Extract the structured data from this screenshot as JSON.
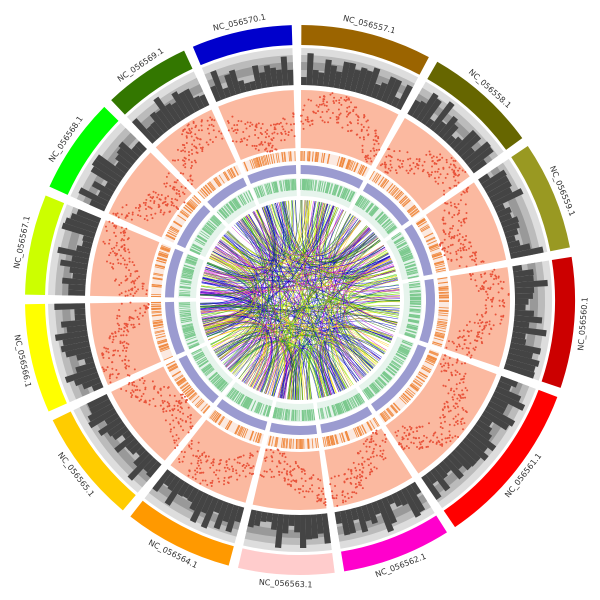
{
  "chart_data": {
    "type": "circos",
    "categories": [
      "NC_056557.1",
      "NC_056558.1",
      "NC_056559.1",
      "NC_056560.1",
      "NC_056561.1",
      "NC_056562.1",
      "NC_056563.1",
      "NC_056564.1",
      "NC_056565.1",
      "NC_056566.1",
      "NC_056567.1",
      "NC_056568.1",
      "NC_056569.1",
      "NC_056570.1"
    ],
    "values": [
      30,
      26,
      25,
      30,
      38,
      25,
      22,
      25,
      26,
      25,
      23,
      22,
      20,
      23
    ],
    "colors": [
      "#9b6400",
      "#666600",
      "#999922",
      "#cc0000",
      "#ff0000",
      "#ff00cc",
      "#ffcccc",
      "#ff9900",
      "#ffcc00",
      "#ffff00",
      "#ccff00",
      "#00ff00",
      "#337700",
      "#0000cc"
    ]
  }
}
